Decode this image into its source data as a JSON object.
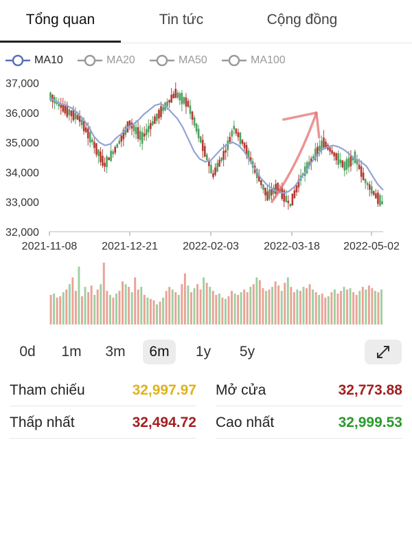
{
  "tabs": [
    {
      "label": "Tổng quan",
      "active": true
    },
    {
      "label": "Tin tức",
      "active": false
    },
    {
      "label": "Cộng đồng",
      "active": false
    }
  ],
  "legend": [
    {
      "label": "MA10",
      "active": true,
      "color": "#5a6fb5"
    },
    {
      "label": "MA20",
      "active": false,
      "color": "#9a9a9a"
    },
    {
      "label": "MA50",
      "active": false,
      "color": "#9a9a9a"
    },
    {
      "label": "MA100",
      "active": false,
      "color": "#9a9a9a"
    }
  ],
  "chart_data": {
    "type": "candlestick",
    "y_ticks": [
      "37,000",
      "36,000",
      "35,000",
      "34,000",
      "33,000",
      "32,000"
    ],
    "y_tick_values": [
      37000,
      36000,
      35000,
      34000,
      33000,
      32000
    ],
    "ylim": [
      32000,
      37200
    ],
    "x_ticks": [
      "2021-11-08",
      "2021-12-21",
      "2022-02-03",
      "2022-03-18",
      "2022-05-02"
    ],
    "price_path": [
      [
        36550,
        0
      ],
      [
        36150,
        6
      ],
      [
        35800,
        14
      ],
      [
        35050,
        20
      ],
      [
        34250,
        26
      ],
      [
        34750,
        31
      ],
      [
        35650,
        38
      ],
      [
        35150,
        44
      ],
      [
        35950,
        52
      ],
      [
        36650,
        60
      ],
      [
        36300,
        66
      ],
      [
        35100,
        72
      ],
      [
        33900,
        78
      ],
      [
        34700,
        84
      ],
      [
        35500,
        88
      ],
      [
        34900,
        93
      ],
      [
        34100,
        98
      ],
      [
        33200,
        104
      ],
      [
        33500,
        109
      ],
      [
        32900,
        115
      ],
      [
        33800,
        120
      ],
      [
        34500,
        126
      ],
      [
        35000,
        131
      ],
      [
        34600,
        136
      ],
      [
        34200,
        141
      ],
      [
        34500,
        146
      ],
      [
        33700,
        151
      ],
      [
        33200,
        156
      ],
      [
        32900,
        160
      ]
    ],
    "ma10": [
      36500,
      36400,
      36300,
      36250,
      36150,
      36000,
      35800,
      35550,
      35200,
      35000,
      34900,
      34950,
      35150,
      35300,
      35500,
      35600,
      35750,
      35950,
      36100,
      36250,
      36300,
      36200,
      36000,
      35800,
      35500,
      35100,
      34700,
      34450,
      34350,
      34400,
      34600,
      34800,
      34950,
      35000,
      34900,
      34700,
      34400,
      34100,
      33800,
      33600,
      33450,
      33350,
      33300,
      33350,
      33500,
      33750,
      34000,
      34300,
      34550,
      34750,
      34850,
      34900,
      34850,
      34750,
      34600,
      34450,
      34350,
      34200,
      33900,
      33600,
      33400
    ],
    "annotation_arrow": {
      "from": [
        40,
        33000
      ],
      "to": [
        48,
        36000
      ],
      "color": "#e47070"
    },
    "volume": [
      44,
      46,
      40,
      42,
      48,
      52,
      60,
      70,
      50,
      86,
      42,
      56,
      48,
      58,
      44,
      52,
      60,
      92,
      50,
      44,
      40,
      46,
      50,
      64,
      60,
      56,
      48,
      70,
      52,
      56,
      44,
      40,
      38,
      36,
      30,
      34,
      40,
      50,
      56,
      52,
      48,
      44,
      60,
      76,
      58,
      48,
      54,
      60,
      52,
      70,
      62,
      56,
      50,
      44,
      46,
      40,
      38,
      42,
      50,
      46,
      44,
      48,
      52,
      48,
      56,
      60,
      70,
      66,
      54,
      50,
      52,
      56,
      64,
      58,
      50,
      62,
      70,
      56,
      48,
      52,
      50,
      56,
      54,
      60,
      52,
      48,
      44,
      46,
      40,
      42,
      48,
      52,
      46,
      50,
      56,
      52,
      54,
      48,
      44,
      50,
      56,
      52,
      58,
      54,
      50,
      48,
      52
    ],
    "up_color": "#4ea160",
    "down_color": "#b43a32",
    "volume_up_color": "#9ecfa3",
    "volume_down_color": "#e9a394"
  },
  "ranges": [
    {
      "label": "0d",
      "active": false
    },
    {
      "label": "1m",
      "active": false
    },
    {
      "label": "3m",
      "active": false
    },
    {
      "label": "6m",
      "active": true
    },
    {
      "label": "1y",
      "active": false
    },
    {
      "label": "5y",
      "active": false
    }
  ],
  "expand_icon": "expand-icon",
  "stats": {
    "ref": {
      "label": "Tham chiếu",
      "value": "32,997.97",
      "color": "#e0b21c"
    },
    "open": {
      "label": "Mở cửa",
      "value": "32,773.88",
      "color": "#a31f1f"
    },
    "low": {
      "label": "Thấp nhất",
      "value": "32,494.72",
      "color": "#a31f1f"
    },
    "high": {
      "label": "Cao nhất",
      "value": "32,999.53",
      "color": "#2a9a2a"
    }
  }
}
